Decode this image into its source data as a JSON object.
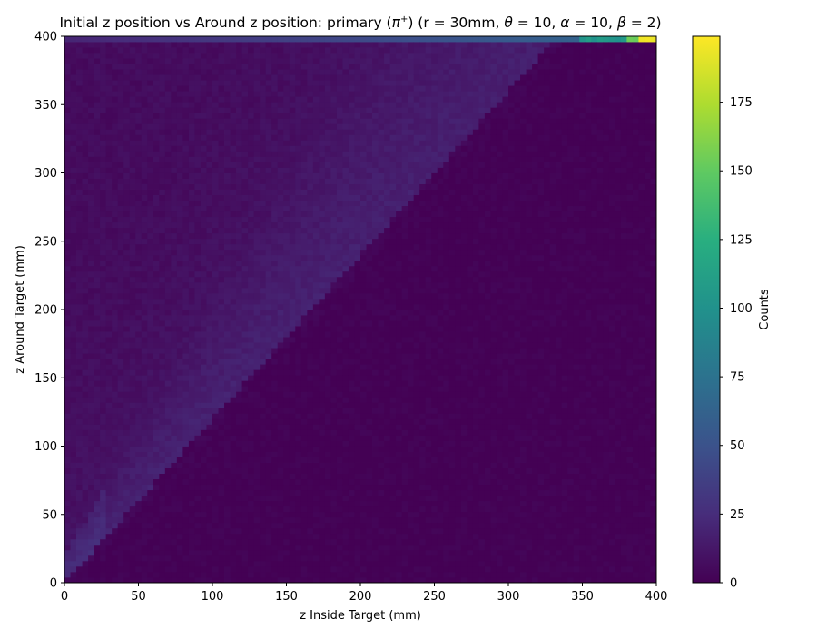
{
  "chart_data": {
    "type": "heatmap",
    "title": "Initial z position vs Around z position: primary ($\\pi^+$) (r = 30mm, $\\theta = 10, \\alpha = 10, \\beta = 2$)",
    "title_parts": {
      "prefix": "Initial z position vs Around z position: primary (",
      "pi": "π",
      "pi_sup": "+",
      "middle": ") (r = 30mm, ",
      "theta": "θ",
      "theta_val": " = 10, ",
      "alpha": "α",
      "alpha_val": " = 10, ",
      "beta": "β",
      "beta_val": " = 2)"
    },
    "xlabel": "z Inside Target (mm)",
    "ylabel": "z Around Target (mm)",
    "colorbar_label": "Counts",
    "xlim": [
      0,
      400
    ],
    "ylim": [
      0,
      400
    ],
    "clim": [
      0,
      199
    ],
    "colormap": "viridis",
    "bins": 100,
    "grid": false,
    "xticks": [
      "0",
      "50",
      "100",
      "150",
      "200",
      "250",
      "300",
      "350",
      "400"
    ],
    "yticks": [
      "0",
      "50",
      "100",
      "150",
      "200",
      "250",
      "300",
      "350",
      "400"
    ],
    "colorbar_ticks": [
      "0",
      "25",
      "50",
      "75",
      "100",
      "125",
      "150",
      "175"
    ],
    "distribution": {
      "band_lower_edge": "z_around ≈ 1.2 × z_inside",
      "band_upper_edge": "z_around ≈ 1.8 × z_inside + 20",
      "band_counts": "≈25 near origin, ≈12–20 along band, ≈5–10 above band, ≈0 below",
      "hot_spots": [
        {
          "x": [
            390,
            400
          ],
          "y": [
            396,
            400
          ],
          "counts": 199
        },
        {
          "x": [
            380,
            390
          ],
          "y": [
            396,
            400
          ],
          "counts": 160
        },
        {
          "x": [
            350,
            380
          ],
          "y": [
            396,
            400
          ],
          "counts": 110
        }
      ]
    }
  }
}
